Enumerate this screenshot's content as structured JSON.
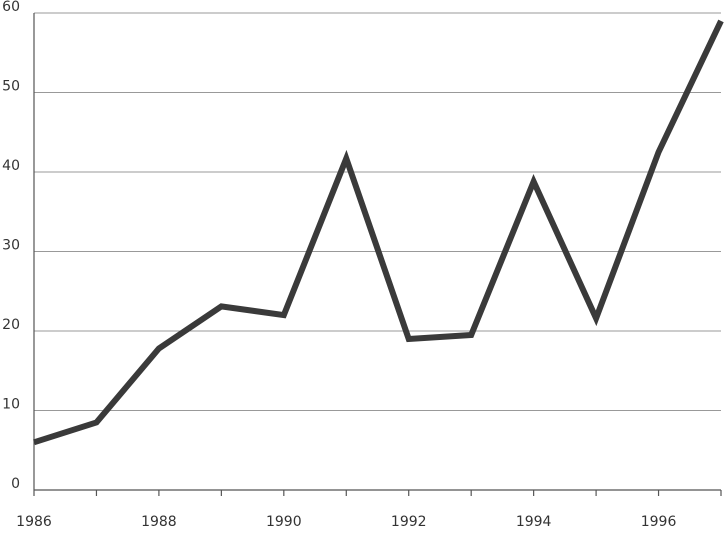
{
  "chart_data": {
    "type": "line",
    "x": [
      1986,
      1987,
      1988,
      1989,
      1990,
      1991,
      1992,
      1993,
      1994,
      1995,
      1996,
      1997
    ],
    "values": [
      6,
      8.5,
      17.8,
      23.1,
      22,
      41.7,
      19,
      19.5,
      38.8,
      21.6,
      42.5,
      59
    ],
    "color": "#3a3a3a",
    "xlim": [
      1986,
      1997
    ],
    "xticks": [
      1986,
      1988,
      1990,
      1992,
      1994,
      1996
    ],
    "xminorticks": [
      1987,
      1989,
      1991,
      1993,
      1995,
      1997
    ],
    "ylim": [
      0,
      60
    ],
    "yticks": [
      0,
      10,
      20,
      30,
      40,
      50,
      60
    ],
    "grid": true
  }
}
